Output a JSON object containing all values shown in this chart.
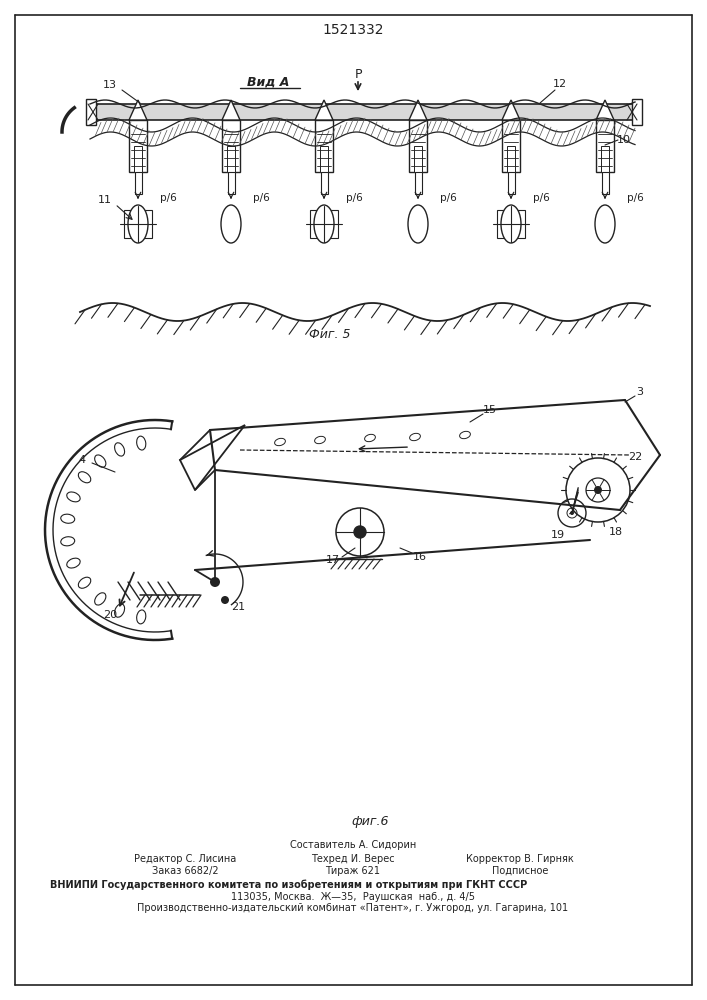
{
  "title_number": "1521332",
  "fig5_label": "Фиг. 5",
  "fig6_label": "фиг.6",
  "vid_a_label": "Вид A",
  "p_label": "P",
  "label_10": "10",
  "label_11": "11",
  "label_12": "12",
  "label_13": "13",
  "label_15": "15",
  "label_16": "16",
  "label_17": "17",
  "label_18": "18",
  "label_19": "19",
  "label_20": "20",
  "label_21": "21",
  "label_22": "22",
  "label_3": "3",
  "label_4": "4",
  "rb_label": "р/6",
  "bg_color": "#ffffff",
  "line_color": "#222222",
  "footer_c0": "Составитель А. Сидорин",
  "footer_r0a": "Редактор С. Лисина",
  "footer_c1": "Техред И. Верес",
  "footer_r1a": "Корректор В. Гирняк",
  "footer_r0b": "Заказ 6682/2",
  "footer_c2": "Тираж 621",
  "footer_r1b": "Подписное",
  "footer_vniip": "ВНИИПИ Государственного комитета по изобретениям и открытиям при ГКНТ СССР",
  "footer_addr": "113035, Москва.  Ж—35,  Раушская  наб., д. 4/5",
  "footer_patent": "Производственно-издательский комбинат «Патент», г. Ужгород, ул. Гагарина, 101"
}
